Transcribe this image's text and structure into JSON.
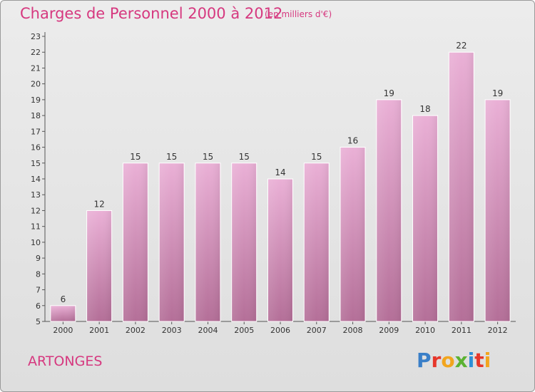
{
  "header": {
    "title": "Charges de Personnel 2000 à 2012",
    "subtitle": "(en milliers d'€)"
  },
  "commune": "ARTONGES",
  "logo": {
    "text": "Proxiti",
    "letter_colors": [
      "#3a7fc8",
      "#e6372b",
      "#f2a51e",
      "#5bb232",
      "#2d8fd6",
      "#e6372b",
      "#f2a51e"
    ]
  },
  "colors": {
    "bar_top": "#eab0d6",
    "bar_bottom": "#b46f98",
    "bar_outline": "#ffffff",
    "title": "#d6387f"
  },
  "chart_data": {
    "type": "bar",
    "categories": [
      "2000",
      "2001",
      "2002",
      "2003",
      "2004",
      "2005",
      "2006",
      "2007",
      "2008",
      "2009",
      "2010",
      "2011",
      "2012"
    ],
    "values": [
      6,
      12,
      15,
      15,
      15,
      15,
      14,
      15,
      16,
      19,
      18,
      22,
      19
    ],
    "ylim": [
      5,
      23
    ],
    "yticks": [
      5,
      6,
      7,
      8,
      9,
      10,
      11,
      12,
      13,
      14,
      15,
      16,
      17,
      18,
      19,
      20,
      21,
      22,
      23
    ],
    "grid": false,
    "legend": "none"
  }
}
